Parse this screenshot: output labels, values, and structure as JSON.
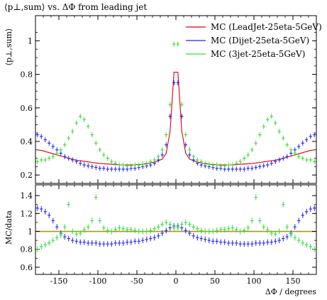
{
  "chart_data": {
    "type": "scatter",
    "title": "⟨p⊥,sum⟩ vs. ΔΦ from leading jet",
    "xlabel": "ΔΦ / degrees",
    "top_panel": {
      "ylabel": "⟨p⊥,sum⟩",
      "ylim": [
        0.15,
        1.15
      ],
      "yticks": [
        "0.2",
        "0.4",
        "0.6",
        "0.8",
        "1"
      ],
      "ytick_values": [
        0.2,
        0.4,
        0.6,
        0.8,
        1.0
      ]
    },
    "bottom_panel": {
      "ylabel": "MC/data",
      "ylim": [
        0.52,
        1.52
      ],
      "yticks": [
        "0.6",
        "0.8",
        "1",
        "1.2",
        "1.4"
      ],
      "ytick_values": [
        0.6,
        0.8,
        1.0,
        1.2,
        1.4
      ],
      "reference_line": 1.0,
      "reference_color": "#a89f00"
    },
    "xlim": [
      -180,
      180
    ],
    "xticks": [
      "-150",
      "-100",
      "-50",
      "0",
      "50",
      "100",
      "150"
    ],
    "xtick_values": [
      -150,
      -100,
      -50,
      0,
      50,
      100,
      150
    ],
    "legend_position": "top-right",
    "series": [
      {
        "name": "MC (LeadJet-25eta-5GeV)",
        "color": "#e00000",
        "x": [
          -175,
          -160,
          -145,
          -130,
          -115,
          -100,
          -85,
          -70,
          -55,
          -40,
          -25,
          -15,
          -10,
          -6,
          -4,
          -2,
          0,
          2,
          4,
          6,
          10,
          15,
          25,
          40,
          55,
          70,
          85,
          100,
          115,
          130,
          145,
          160,
          175
        ],
        "y": [
          0.35,
          0.33,
          0.31,
          0.29,
          0.28,
          0.27,
          0.265,
          0.26,
          0.26,
          0.265,
          0.28,
          0.3,
          0.36,
          0.52,
          0.7,
          0.85,
          0.86,
          0.85,
          0.7,
          0.52,
          0.36,
          0.3,
          0.28,
          0.265,
          0.26,
          0.26,
          0.265,
          0.27,
          0.28,
          0.29,
          0.31,
          0.33,
          0.35
        ],
        "ratio": [
          0.93,
          0.93,
          0.92,
          0.91,
          0.9,
          0.9,
          0.9,
          0.91,
          0.92,
          0.94,
          0.97,
          1.0,
          1.03,
          1.05,
          1.06,
          1.06,
          1.06,
          1.06,
          1.06,
          1.05,
          1.03,
          1.0,
          0.97,
          0.94,
          0.92,
          0.91,
          0.9,
          0.9,
          0.9,
          0.91,
          0.92,
          0.93,
          0.93
        ]
      },
      {
        "name": "MC (Dijet-25eta-5GeV)",
        "color": "#2020ff",
        "x": [
          -177.5,
          -172.5,
          -167.5,
          -162.5,
          -157.5,
          -152.5,
          -147.5,
          -142.5,
          -137.5,
          -132.5,
          -127.5,
          -122.5,
          -117.5,
          -112.5,
          -107.5,
          -102.5,
          -97.5,
          -92.5,
          -87.5,
          -82.5,
          -77.5,
          -72.5,
          -67.5,
          -62.5,
          -57.5,
          -52.5,
          -47.5,
          -42.5,
          -37.5,
          -32.5,
          -27.5,
          -22.5,
          -17.5,
          -12.5,
          -7.5,
          -2.5,
          2.5,
          7.5,
          12.5,
          17.5,
          22.5,
          27.5,
          32.5,
          37.5,
          42.5,
          47.5,
          52.5,
          57.5,
          62.5,
          67.5,
          72.5,
          77.5,
          82.5,
          87.5,
          92.5,
          97.5,
          102.5,
          107.5,
          112.5,
          117.5,
          122.5,
          127.5,
          132.5,
          137.5,
          142.5,
          147.5,
          152.5,
          157.5,
          162.5,
          167.5,
          172.5,
          177.5
        ],
        "y": [
          0.44,
          0.43,
          0.41,
          0.39,
          0.37,
          0.35,
          0.33,
          0.31,
          0.3,
          0.29,
          0.28,
          0.27,
          0.26,
          0.255,
          0.25,
          0.245,
          0.24,
          0.24,
          0.235,
          0.235,
          0.235,
          0.235,
          0.235,
          0.235,
          0.24,
          0.24,
          0.245,
          0.25,
          0.255,
          0.26,
          0.27,
          0.29,
          0.32,
          0.38,
          0.55,
          0.75,
          0.75,
          0.55,
          0.38,
          0.32,
          0.29,
          0.27,
          0.26,
          0.255,
          0.25,
          0.245,
          0.24,
          0.24,
          0.235,
          0.235,
          0.235,
          0.235,
          0.235,
          0.235,
          0.24,
          0.24,
          0.245,
          0.25,
          0.255,
          0.26,
          0.27,
          0.28,
          0.29,
          0.3,
          0.31,
          0.33,
          0.35,
          0.37,
          0.39,
          0.41,
          0.43,
          0.44
        ],
        "ratio": [
          1.26,
          1.25,
          1.22,
          1.18,
          1.12,
          1.05,
          0.98,
          0.94,
          0.92,
          0.9,
          0.89,
          0.88,
          0.88,
          0.87,
          0.87,
          0.87,
          0.86,
          0.86,
          0.86,
          0.86,
          0.87,
          0.87,
          0.87,
          0.88,
          0.88,
          0.89,
          0.89,
          0.9,
          0.91,
          0.92,
          0.93,
          0.95,
          0.98,
          1.01,
          1.04,
          1.06,
          1.06,
          1.04,
          1.01,
          0.98,
          0.95,
          0.93,
          0.92,
          0.91,
          0.9,
          0.89,
          0.89,
          0.88,
          0.88,
          0.87,
          0.87,
          0.87,
          0.86,
          0.86,
          0.86,
          0.86,
          0.87,
          0.87,
          0.87,
          0.88,
          0.88,
          0.89,
          0.9,
          0.92,
          0.94,
          0.98,
          1.05,
          1.12,
          1.18,
          1.22,
          1.25,
          1.26
        ]
      },
      {
        "name": "MC (3jet-25eta-5GeV)",
        "color": "#33dd33",
        "x": [
          -177.5,
          -172.5,
          -167.5,
          -162.5,
          -157.5,
          -152.5,
          -147.5,
          -142.5,
          -137.5,
          -132.5,
          -127.5,
          -122.5,
          -117.5,
          -112.5,
          -107.5,
          -102.5,
          -97.5,
          -92.5,
          -87.5,
          -82.5,
          -77.5,
          -72.5,
          -67.5,
          -62.5,
          -57.5,
          -52.5,
          -47.5,
          -42.5,
          -37.5,
          -32.5,
          -27.5,
          -22.5,
          -17.5,
          -12.5,
          -7.5,
          -2.5,
          2.5,
          7.5,
          12.5,
          17.5,
          22.5,
          27.5,
          32.5,
          37.5,
          42.5,
          47.5,
          52.5,
          57.5,
          62.5,
          67.5,
          72.5,
          77.5,
          82.5,
          87.5,
          92.5,
          97.5,
          102.5,
          107.5,
          112.5,
          117.5,
          122.5,
          127.5,
          132.5,
          137.5,
          142.5,
          147.5,
          152.5,
          157.5,
          162.5,
          167.5,
          172.5,
          177.5
        ],
        "y": [
          0.28,
          0.29,
          0.29,
          0.3,
          0.31,
          0.33,
          0.35,
          0.38,
          0.42,
          0.46,
          0.51,
          0.55,
          0.53,
          0.49,
          0.44,
          0.39,
          0.35,
          0.32,
          0.3,
          0.28,
          0.27,
          0.26,
          0.26,
          0.255,
          0.255,
          0.26,
          0.26,
          0.265,
          0.27,
          0.28,
          0.29,
          0.31,
          0.35,
          0.44,
          0.62,
          0.98,
          0.98,
          0.62,
          0.44,
          0.35,
          0.31,
          0.29,
          0.28,
          0.27,
          0.265,
          0.26,
          0.26,
          0.255,
          0.255,
          0.26,
          0.26,
          0.27,
          0.28,
          0.3,
          0.32,
          0.35,
          0.39,
          0.44,
          0.49,
          0.53,
          0.55,
          0.51,
          0.46,
          0.42,
          0.38,
          0.35,
          0.33,
          0.31,
          0.3,
          0.29,
          0.29,
          0.28
        ],
        "ratio": [
          0.8,
          0.83,
          0.85,
          0.87,
          0.9,
          0.93,
          0.96,
          1.05,
          1.3,
          1.0,
          0.97,
          0.98,
          1.02,
          1.05,
          1.12,
          1.38,
          1.12,
          1.04,
          1.01,
          1.0,
          1.02,
          1.04,
          1.03,
          1.02,
          1.02,
          1.01,
          1.0,
          1.0,
          1.0,
          1.01,
          1.03,
          1.05,
          1.08,
          1.1,
          1.08,
          1.04,
          1.04,
          1.08,
          1.1,
          1.08,
          1.05,
          1.03,
          1.01,
          1.0,
          1.0,
          1.0,
          1.01,
          1.02,
          1.02,
          1.03,
          1.04,
          1.02,
          1.0,
          1.01,
          1.04,
          1.12,
          1.38,
          1.12,
          1.05,
          1.02,
          0.98,
          0.97,
          1.0,
          1.3,
          1.05,
          0.96,
          0.93,
          0.9,
          0.87,
          0.85,
          0.83,
          0.8
        ]
      }
    ]
  }
}
